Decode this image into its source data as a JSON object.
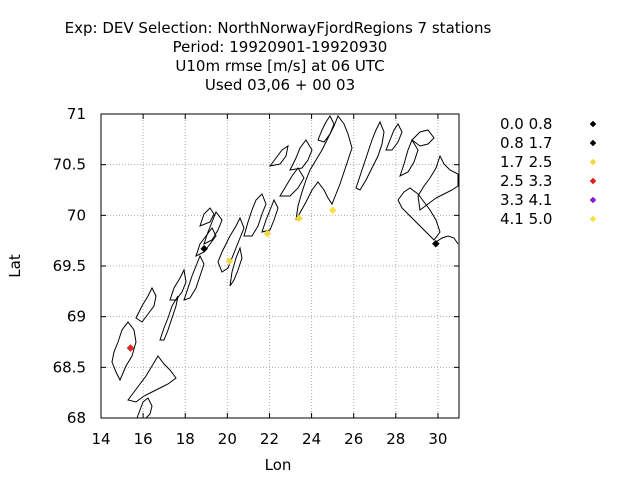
{
  "title": {
    "line1": "Exp: DEV   Selection: NorthNorwayFjordRegions       7 stations",
    "line2": "Period: 19920901-19920930",
    "line3": "U10m rmse [m/s] at  06 UTC",
    "line4": "Used  03,06  + 00 03"
  },
  "chart_data": {
    "type": "scatter",
    "xlabel": "Lon",
    "ylabel": "Lat",
    "xlim": [
      14,
      31
    ],
    "ylim": [
      68,
      71
    ],
    "xticks": [
      14,
      16,
      18,
      20,
      22,
      24,
      26,
      28,
      30
    ],
    "yticks": [
      68,
      68.5,
      69,
      69.5,
      70,
      70.5,
      71
    ],
    "grid": true,
    "legend_position": "right",
    "legend": [
      {
        "label": "0.0 0.8",
        "color": "#000000"
      },
      {
        "label": "0.8 1.7",
        "color": "#000000"
      },
      {
        "label": "1.7 2.5",
        "color": "#f5d742"
      },
      {
        "label": "2.5 3.3",
        "color": "#e0201b"
      },
      {
        "label": "3.3 4.1",
        "color": "#8b1ad8"
      },
      {
        "label": "4.1 5.0",
        "color": "#f5e142"
      }
    ],
    "stations": [
      {
        "lon": 15.4,
        "lat": 68.69,
        "color": "#e0201b"
      },
      {
        "lon": 18.9,
        "lat": 69.67,
        "color": "#000000"
      },
      {
        "lon": 20.1,
        "lat": 69.55,
        "color": "#f5d742"
      },
      {
        "lon": 21.9,
        "lat": 69.82,
        "color": "#f5d742"
      },
      {
        "lon": 23.4,
        "lat": 69.97,
        "color": "#f5d742"
      },
      {
        "lon": 25.0,
        "lat": 70.05,
        "color": "#f5e142"
      },
      {
        "lon": 29.9,
        "lat": 69.72,
        "color": "#000000"
      }
    ]
  }
}
